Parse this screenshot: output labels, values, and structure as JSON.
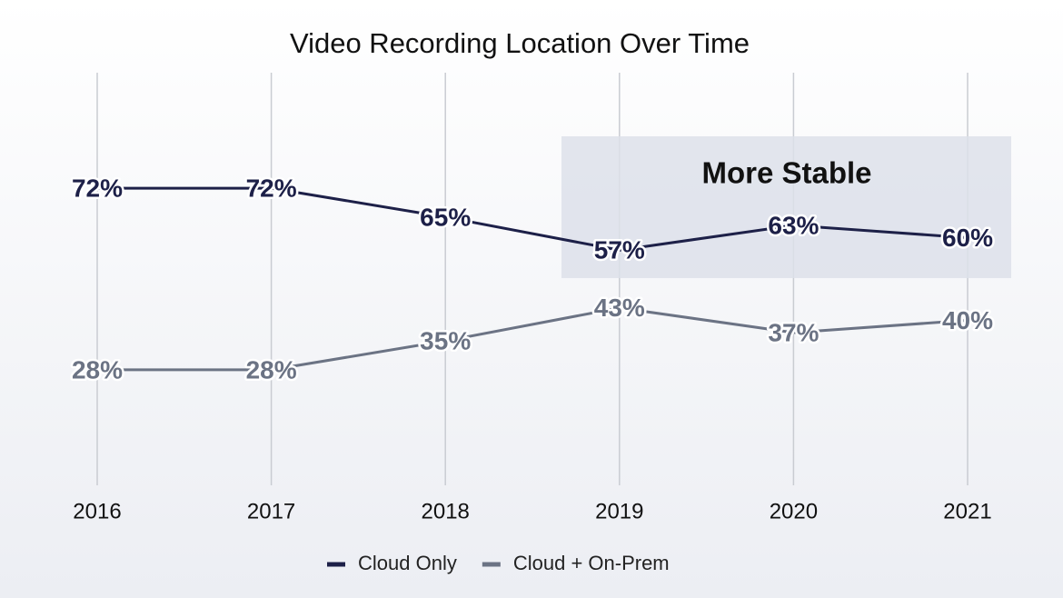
{
  "chart_data": {
    "type": "line",
    "title": "Video Recording Location Over Time",
    "categories": [
      "2016",
      "2017",
      "2018",
      "2019",
      "2020",
      "2021"
    ],
    "series": [
      {
        "name": "Cloud Only",
        "color": "#1d2048",
        "values": [
          72,
          72,
          65,
          57,
          63,
          60
        ],
        "value_labels": [
          "72%",
          "72%",
          "65%",
          "57%",
          "63%",
          "60%"
        ]
      },
      {
        "name": "Cloud + On-Prem",
        "color": "#6b7384",
        "values": [
          28,
          28,
          35,
          43,
          37,
          40
        ],
        "value_labels": [
          "28%",
          "28%",
          "35%",
          "43%",
          "37%",
          "40%"
        ]
      }
    ],
    "ylim": [
      0,
      100
    ],
    "grid": true,
    "annotation": "More Stable"
  }
}
